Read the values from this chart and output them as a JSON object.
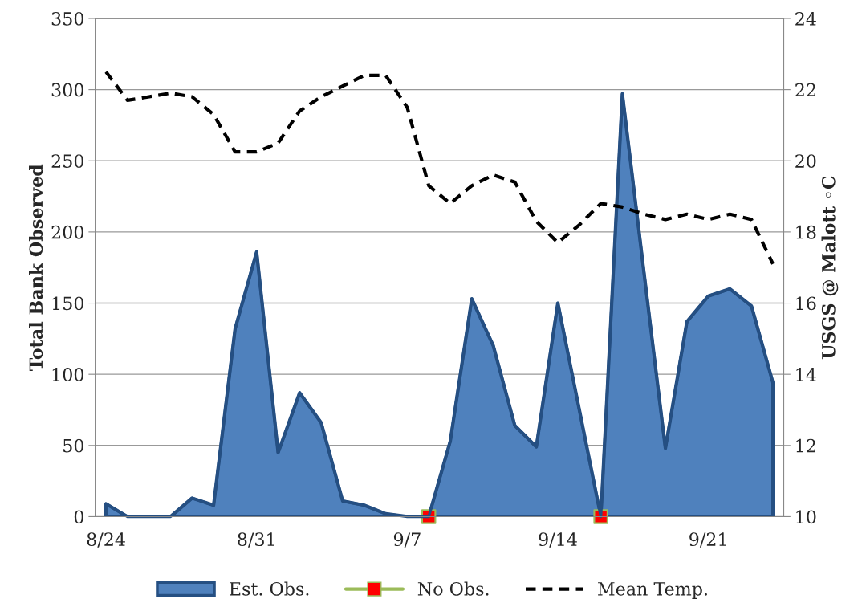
{
  "chart_data": {
    "type": "area",
    "ylabel": "Total Bank Observed",
    "y2label": "USGS @ Malott ◦C",
    "categories": [
      "8/24",
      null,
      null,
      null,
      null,
      null,
      null,
      "8/31",
      null,
      null,
      null,
      null,
      null,
      null,
      "9/7",
      null,
      null,
      null,
      null,
      null,
      null,
      "9/14",
      null,
      null,
      null,
      null,
      null,
      null,
      "9/21",
      null,
      null,
      null
    ],
    "series": [
      {
        "name": "Est. Obs.",
        "color": "#4f81bd",
        "values": [
          9,
          0,
          0,
          0,
          13,
          8,
          132,
          186,
          45,
          87,
          66,
          11,
          8,
          2,
          0,
          0,
          53,
          153,
          120,
          64,
          49,
          150,
          75,
          0,
          297,
          172,
          48,
          137,
          155,
          160,
          148,
          94
        ]
      },
      {
        "name": "No Obs.",
        "type": "scatter",
        "color": "#9bbb59",
        "marker": "square",
        "values": [
          null,
          null,
          null,
          null,
          null,
          null,
          null,
          null,
          null,
          null,
          null,
          null,
          null,
          null,
          null,
          0,
          null,
          null,
          null,
          null,
          null,
          null,
          null,
          0,
          null,
          null,
          null,
          null,
          null,
          null,
          null,
          null
        ]
      },
      {
        "name": "Mean Temp.",
        "type": "line",
        "axis": "y2",
        "color": "#000000",
        "line_style": "dashed",
        "values": [
          22.5,
          21.7,
          21.8,
          21.9,
          21.8,
          21.3,
          20.25,
          20.25,
          20.5,
          21.4,
          21.8,
          22.1,
          22.4,
          22.4,
          21.5,
          19.3,
          18.8,
          19.3,
          19.6,
          19.4,
          18.3,
          17.7,
          18.2,
          18.8,
          18.7,
          18.5,
          18.35,
          18.5,
          18.35,
          18.5,
          18.35,
          17.1
        ]
      }
    ],
    "ylim": [
      0,
      350
    ],
    "yticks": [
      0,
      50,
      100,
      150,
      200,
      250,
      300,
      350
    ],
    "y2lim": [
      10,
      24
    ],
    "y2ticks": [
      10,
      12,
      14,
      16,
      18,
      20,
      22,
      24
    ],
    "grid": "y",
    "legend": "bottom"
  }
}
